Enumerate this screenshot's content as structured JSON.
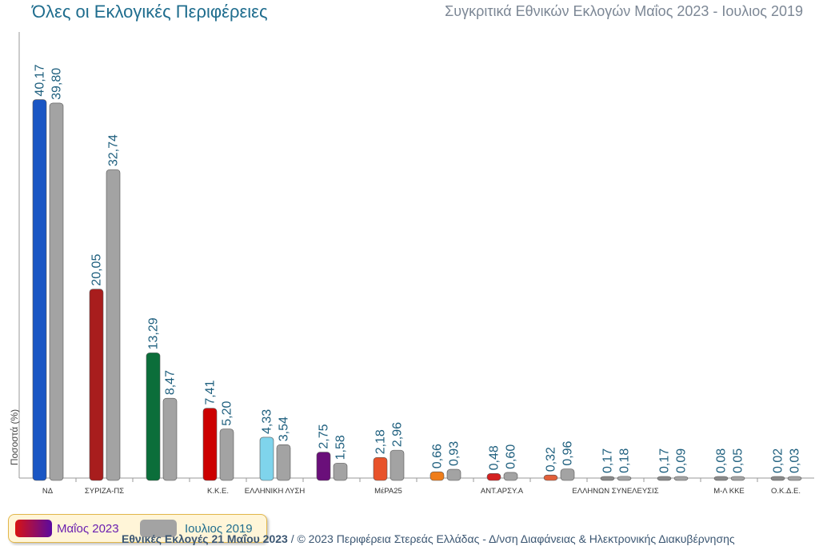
{
  "header": {
    "title": "Όλες οι Εκλογικές Περιφέρειες",
    "subtitle": "Συγκριτικά Εθνικών Εκλογών Μαΐος 2023 - Ιουλιος 2019"
  },
  "legend": {
    "may_label": "Μαΐος 2023",
    "july_label": "Ιουλιος 2019"
  },
  "footer": {
    "bold": "Εθνικές Εκλογές 21 Μαΐου 2023",
    "rest": " / © 2023 Περιφέρεια Στερεάς Ελλάδας - Δ/νση Διαφάνειας & Ηλεκτρονικής Διακυβέρνησης"
  },
  "chart_data": {
    "type": "bar",
    "ylabel": "Ποσοστά (%)",
    "ylim": [
      0,
      42
    ],
    "grid": false,
    "legend_position": "bottom-left",
    "categories": [
      "ΝΔ",
      "ΣΥΡΙΖΑ-ΠΣ",
      "",
      "Κ.Κ.Ε.",
      "ΕΛΛΗΝΙΚΗ ΛΥΣΗ",
      "",
      "ΜέΡΑ25",
      "",
      "ΑΝΤ.ΑΡΣΥ.Α",
      "",
      "ΕΛΛΗΝΩΝ ΣΥΝΕΛΕΥΣΙΣ",
      "",
      "Μ-Λ ΚΚΕ",
      "Ο.Κ.Δ.Ε."
    ],
    "series": [
      {
        "name": "Μαΐος 2023",
        "values": [
          40.17,
          20.05,
          13.29,
          7.41,
          4.33,
          2.75,
          2.18,
          0.66,
          0.48,
          0.32,
          0.17,
          0.17,
          0.08,
          0.02
        ],
        "labels": [
          "40,17",
          "20,05",
          "13,29",
          "7,41",
          "4,33",
          "2,75",
          "2,18",
          "0,66",
          "0,48",
          "0,32",
          "0,17",
          "0,17",
          "0,08",
          "0,02"
        ],
        "colors": [
          "#1a56c4",
          "#a81d1d",
          "#0b6e3a",
          "#cc0000",
          "#7fd4ec",
          "#6a0f7a",
          "#e8522a",
          "#ef7d1a",
          "#d42020",
          "#e2603a",
          "#8a8a8a",
          "#8a8a8a",
          "#8a8a8a",
          "#8a8a8a"
        ]
      },
      {
        "name": "Ιουλιος 2019",
        "values": [
          39.8,
          32.74,
          8.47,
          5.2,
          3.54,
          1.58,
          2.96,
          0.93,
          0.6,
          0.96,
          0.18,
          0.09,
          0.05,
          0.03
        ],
        "labels": [
          "39,80",
          "32,74",
          "8,47",
          "5,20",
          "3,54",
          "1,58",
          "2,96",
          "0,93",
          "0,60",
          "0,96",
          "0,18",
          "0,09",
          "0,05",
          "0,03"
        ],
        "color": "#a3a3a3"
      }
    ]
  }
}
